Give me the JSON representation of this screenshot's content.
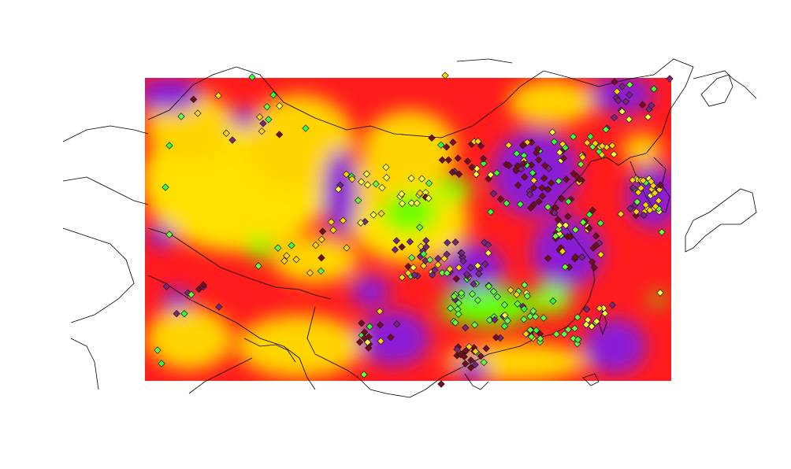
{
  "map": {
    "heatmap_palette": [
      "#8b1ed6",
      "#ff1c1c",
      "#ffd400",
      "#ffff00",
      "#66ff00"
    ],
    "marker_palette": [
      "#7a0a1e",
      "#7a2580",
      "#ffd400",
      "#ffff33",
      "#66ff33",
      "#33ff33"
    ],
    "marker_shape": "diamond",
    "marker_outline": "#1a1a1a",
    "coastline_color": "#000000",
    "background": "#ffffff"
  }
}
